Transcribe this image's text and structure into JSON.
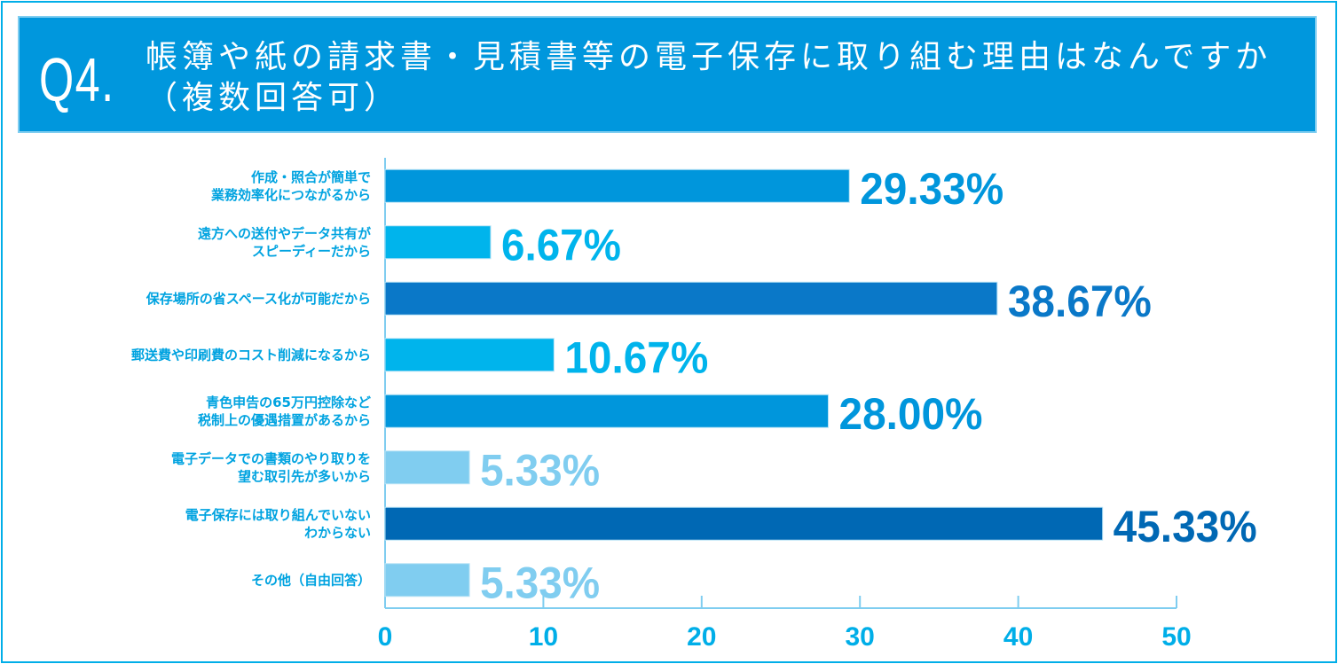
{
  "header": {
    "question_number": "Q4.",
    "title": "帳簿や紙の請求書・見積書等の電子保存に取り組む理由はなんですか（複数回答可）"
  },
  "chart_data": {
    "type": "bar",
    "orientation": "horizontal",
    "categories": [
      [
        "作成・照合が簡単で",
        "業務効率化につながるから"
      ],
      [
        "遠方への送付やデータ共有が",
        "スピーディーだから"
      ],
      [
        "保存場所の省スペース化が可能だから"
      ],
      [
        "郵送費や印刷費のコスト削減になるから"
      ],
      [
        "青色申告の65万円控除など",
        "税制上の優遇措置があるから"
      ],
      [
        "電子データでの書類のやり取りを",
        "望む取引先が多いから"
      ],
      [
        "電子保存には取り組んでいない",
        "わからない"
      ],
      [
        "その他（自由回答）"
      ]
    ],
    "values": [
      29.33,
      6.67,
      38.67,
      10.67,
      28.0,
      5.33,
      45.33,
      5.33
    ],
    "value_labels": [
      "29.33%",
      "6.67%",
      "38.67%",
      "10.67%",
      "28.00%",
      "5.33%",
      "45.33%",
      "5.33%"
    ],
    "colors": [
      "#0096dc",
      "#00b4ec",
      "#0a78c8",
      "#00b4ec",
      "#0096dc",
      "#80cdf0",
      "#0068b4",
      "#80cdf0"
    ],
    "xlim": [
      0,
      50
    ],
    "xticks": [
      "0",
      "10",
      "20",
      "30",
      "40",
      "50"
    ],
    "grid": false,
    "title": "",
    "xlabel": "",
    "ylabel": ""
  }
}
